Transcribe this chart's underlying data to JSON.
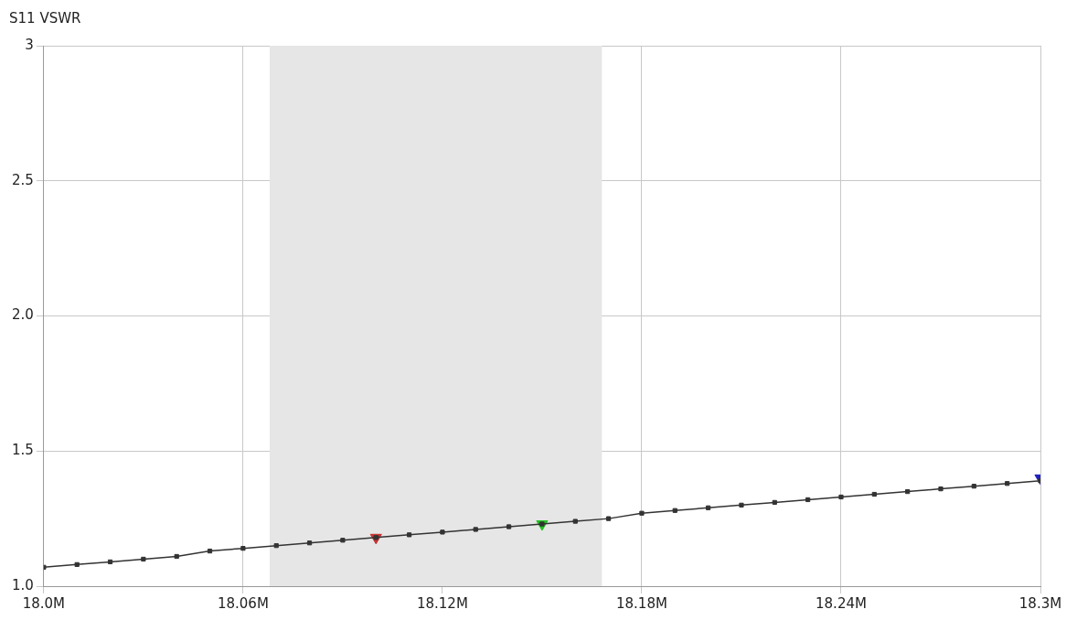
{
  "chart_data": {
    "type": "line",
    "title": "S11 VSWR",
    "xlim": [
      18.0,
      18.3
    ],
    "xticks": [
      {
        "value": 18.0,
        "label": "18.0M"
      },
      {
        "value": 18.06,
        "label": "18.06M"
      },
      {
        "value": 18.12,
        "label": "18.12M"
      },
      {
        "value": 18.18,
        "label": "18.18M"
      },
      {
        "value": 18.24,
        "label": "18.24M"
      },
      {
        "value": 18.3,
        "label": "18.3M"
      }
    ],
    "ylim": [
      1.0,
      3.0
    ],
    "yticks": [
      {
        "value": 1.0,
        "label": "1.0"
      },
      1.5,
      {
        "value": 2.0,
        "label": "2.0"
      },
      2.5,
      3
    ],
    "grid": true,
    "legend": false,
    "marker": "square",
    "bands": [
      {
        "axis": "x",
        "from": 18.068,
        "to": 18.168,
        "color": "#e6e6e6"
      }
    ],
    "series": [
      {
        "color": "#333333",
        "x": [
          18.0,
          18.01,
          18.02,
          18.03,
          18.04,
          18.05,
          18.06,
          18.07,
          18.08,
          18.09,
          18.1,
          18.11,
          18.12,
          18.13,
          18.14,
          18.15,
          18.16,
          18.17,
          18.18,
          18.19,
          18.2,
          18.21,
          18.22,
          18.23,
          18.24,
          18.25,
          18.26,
          18.27,
          18.28,
          18.29,
          18.3
        ],
        "values": [
          1.07,
          1.08,
          1.09,
          1.1,
          1.11,
          1.13,
          1.14,
          1.15,
          1.16,
          1.17,
          1.18,
          1.19,
          1.2,
          1.21,
          1.22,
          1.23,
          1.24,
          1.25,
          1.27,
          1.28,
          1.29,
          1.3,
          1.31,
          1.32,
          1.33,
          1.34,
          1.35,
          1.36,
          1.37,
          1.38,
          1.39
        ]
      },
      {
        "type": "scatter",
        "color": "#c83030",
        "marker": "triangle",
        "x": [
          18.1
        ],
        "values": [
          1.18
        ]
      },
      {
        "type": "scatter",
        "color": "#20c020",
        "marker": "triangle",
        "x": [
          18.15
        ],
        "values": [
          1.23
        ]
      },
      {
        "type": "scatter",
        "color": "#2020c0",
        "marker": "triangle",
        "x": [
          18.3
        ],
        "values": [
          1.4
        ]
      }
    ]
  }
}
